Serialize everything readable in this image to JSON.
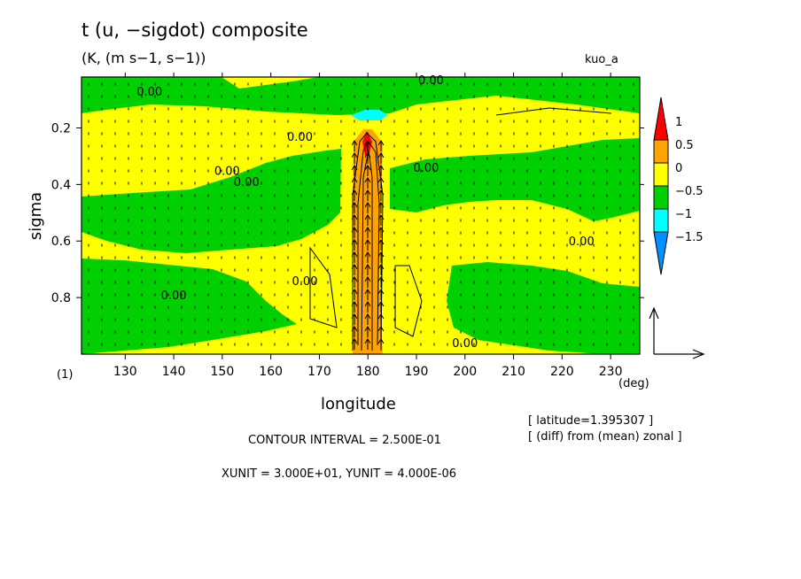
{
  "header": {
    "title": "t (u, −sigdot) composite",
    "subtitle": "(K, (m s−1, s−1))",
    "tag": "kuo_a",
    "panel_label": "(1)"
  },
  "footer": {
    "latitude": "[ latitude=1.395307 ]",
    "diff": "[ (diff) from (mean) zonal ]",
    "contour_interval": "CONTOUR INTERVAL = 2.500E-01",
    "units": "XUNIT = 3.000E+01, YUNIT = 4.000E-06"
  },
  "chart_data": {
    "type": "heatmap",
    "title": "t (u, −sigdot) composite",
    "xlabel": "longitude",
    "x_unit_label": "(deg)",
    "ylabel": "sigma",
    "xlim": [
      121,
      236
    ],
    "ylim": [
      0.02,
      1.0
    ],
    "y_inverted": true,
    "x_ticks": [
      130,
      140,
      150,
      160,
      170,
      180,
      190,
      200,
      210,
      220,
      230
    ],
    "x_tick_labels": [
      "130",
      "140",
      "150",
      "160",
      "170",
      "180",
      "190",
      "200",
      "210",
      "220",
      "230"
    ],
    "y_ticks": [
      0.2,
      0.4,
      0.6,
      0.8
    ],
    "y_tick_labels": [
      "0.2",
      "0.4",
      "0.6",
      "0.8"
    ],
    "contour_labels": [
      {
        "x": 135,
        "y": 0.07,
        "text": "0.00"
      },
      {
        "x": 193,
        "y": 0.03,
        "text": "0.00"
      },
      {
        "x": 166,
        "y": 0.23,
        "text": "0.00"
      },
      {
        "x": 151,
        "y": 0.35,
        "text": "0.00"
      },
      {
        "x": 155,
        "y": 0.39,
        "text": "0.00"
      },
      {
        "x": 192,
        "y": 0.34,
        "text": "0.00"
      },
      {
        "x": 167,
        "y": 0.74,
        "text": "0.00"
      },
      {
        "x": 140,
        "y": 0.79,
        "text": "0.00"
      },
      {
        "x": 200,
        "y": 0.96,
        "text": "0.00"
      },
      {
        "x": 224,
        "y": 0.6,
        "text": "0.00"
      }
    ],
    "colorbar": {
      "levels": [
        -1.5,
        -1,
        -0.5,
        0,
        0.5,
        1
      ],
      "labels": [
        "1",
        "0.5",
        "0",
        "−0.5",
        "−1",
        "−1.5"
      ],
      "colors": [
        "#ff0000",
        "#ffa300",
        "#ffff00",
        "#00d000",
        "#00ffff",
        "#0090ff"
      ]
    },
    "fill_colors": {
      "positive": "#ffff00",
      "negative": "#00d000",
      "strong_positive": "#ffa300",
      "max": "#ff0000",
      "min": "#00ffff"
    }
  }
}
